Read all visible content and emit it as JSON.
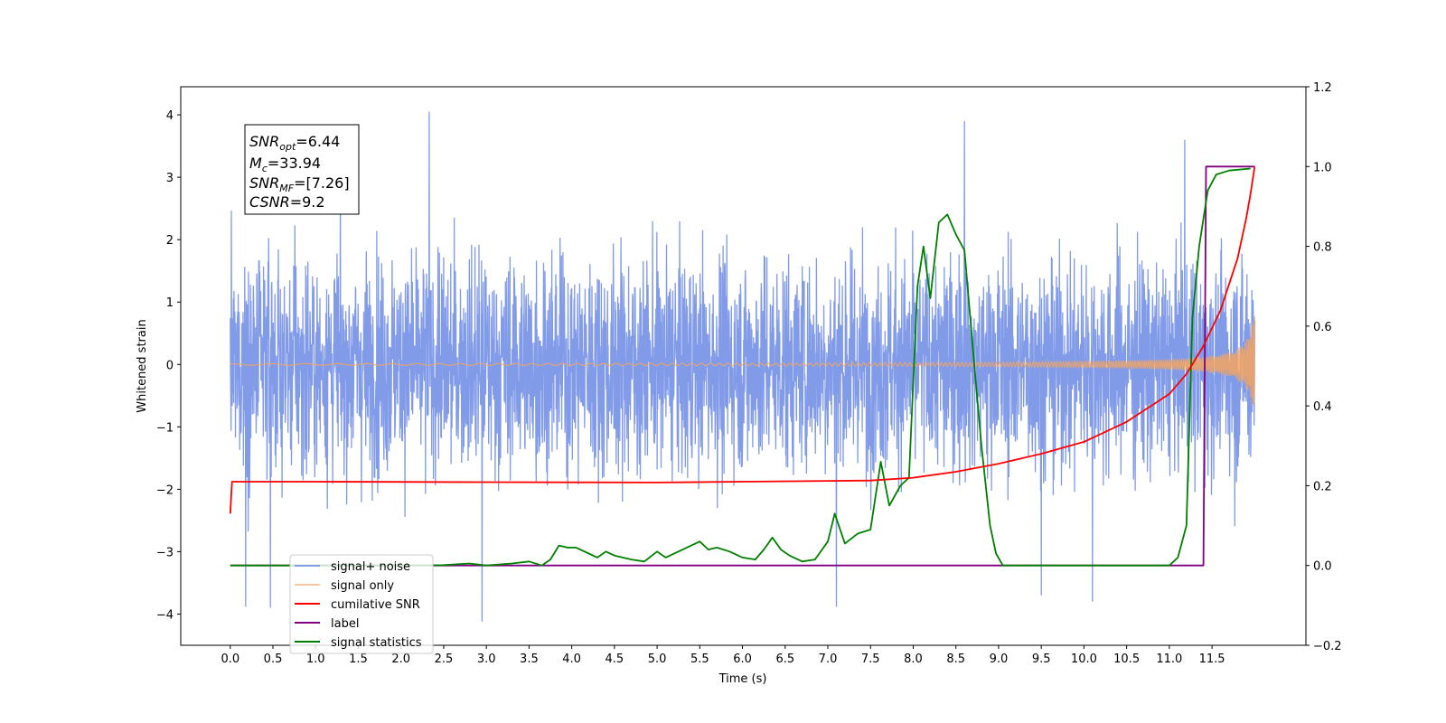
{
  "chart_data": {
    "type": "line",
    "xlabel": "Time (s)",
    "ylabel": "Whitened strain",
    "xlim": [
      -0.58,
      12.6
    ],
    "ylim": [
      -4.5,
      4.45
    ],
    "ylim_right": [
      -0.2,
      1.2
    ],
    "x_ticks": [
      "0.0",
      "0.5",
      "1.0",
      "1.5",
      "2.0",
      "2.5",
      "3.0",
      "3.5",
      "4.0",
      "4.5",
      "5.0",
      "5.5",
      "6.0",
      "6.5",
      "7.0",
      "7.5",
      "8.0",
      "8.5",
      "9.0",
      "9.5",
      "10.0",
      "10.5",
      "11.0",
      "11.5"
    ],
    "y_ticks_left": [
      "−4",
      "−3",
      "−2",
      "−1",
      "0",
      "1",
      "2",
      "3",
      "4"
    ],
    "y_ticks_right": [
      "−0.2",
      "0.0",
      "0.2",
      "0.4",
      "0.6",
      "0.8",
      "1.0",
      "1.2"
    ],
    "annotation": {
      "line1": {
        "base": "SNR",
        "sub": "opt",
        "value": "=6.44"
      },
      "line2": {
        "base": "M",
        "sub": "c",
        "value": "=33.94"
      },
      "line3": {
        "base": "SNR",
        "sub": "MF",
        "value": "=[7.26]"
      },
      "line4": {
        "base": "CSNR",
        "sub": "",
        "value": "=9.2"
      }
    },
    "legend_placement": "lower-left",
    "series": [
      {
        "name": "signal+ noise",
        "color": "#7b96e8",
        "axis": "left",
        "x_range": [
          0.0,
          12.0
        ],
        "typical_peak": [
          2.2,
          -2.2
        ],
        "envelope_extremes": [
          {
            "x": 0.18,
            "y": -3.88
          },
          {
            "x": 0.47,
            "y": -3.9
          },
          {
            "x": 2.33,
            "y": 4.05
          },
          {
            "x": 2.95,
            "y": -4.12
          },
          {
            "x": 7.1,
            "y": -3.88
          },
          {
            "x": 8.6,
            "y": 3.9
          },
          {
            "x": 9.5,
            "y": -3.7
          },
          {
            "x": 10.1,
            "y": -3.8
          },
          {
            "x": 11.18,
            "y": 3.6
          }
        ]
      },
      {
        "name": "signal only",
        "color": "#f4a460",
        "axis": "left",
        "model": "chirp",
        "x_range": [
          0.0,
          12.0
        ],
        "end_amplitude": 1.0,
        "start_frequency_hz": 2,
        "end_frequency_hz": 55
      },
      {
        "name": "cumilative SNR",
        "color": "#ff0000",
        "axis": "right",
        "points": [
          [
            0.0,
            0.13
          ],
          [
            0.02,
            0.21
          ],
          [
            1.0,
            0.21
          ],
          [
            3.0,
            0.209
          ],
          [
            5.0,
            0.208
          ],
          [
            6.0,
            0.21
          ],
          [
            7.0,
            0.212
          ],
          [
            7.5,
            0.213
          ],
          [
            8.0,
            0.22
          ],
          [
            8.5,
            0.235
          ],
          [
            9.0,
            0.255
          ],
          [
            9.5,
            0.28
          ],
          [
            10.0,
            0.31
          ],
          [
            10.5,
            0.36
          ],
          [
            11.0,
            0.43
          ],
          [
            11.2,
            0.48
          ],
          [
            11.4,
            0.55
          ],
          [
            11.6,
            0.64
          ],
          [
            11.8,
            0.77
          ],
          [
            11.9,
            0.87
          ],
          [
            11.95,
            0.93
          ],
          [
            12.0,
            1.0
          ]
        ]
      },
      {
        "name": "label",
        "color": "#800080",
        "axis": "right",
        "points": [
          [
            0.0,
            0.0
          ],
          [
            11.4,
            0.0
          ],
          [
            11.43,
            1.0
          ],
          [
            12.0,
            1.0
          ]
        ]
      },
      {
        "name": "signal statistics",
        "color": "#008000",
        "axis": "right",
        "points": [
          [
            0.0,
            0.0
          ],
          [
            1.0,
            0.0
          ],
          [
            2.0,
            0.0
          ],
          [
            2.5,
            0.001
          ],
          [
            2.8,
            0.005
          ],
          [
            3.0,
            0.0
          ],
          [
            3.3,
            0.005
          ],
          [
            3.5,
            0.01
          ],
          [
            3.65,
            0.0
          ],
          [
            3.75,
            0.015
          ],
          [
            3.85,
            0.05
          ],
          [
            3.95,
            0.045
          ],
          [
            4.05,
            0.045
          ],
          [
            4.2,
            0.03
          ],
          [
            4.3,
            0.02
          ],
          [
            4.4,
            0.035
          ],
          [
            4.5,
            0.025
          ],
          [
            4.7,
            0.015
          ],
          [
            4.85,
            0.01
          ],
          [
            5.0,
            0.035
          ],
          [
            5.1,
            0.02
          ],
          [
            5.25,
            0.035
          ],
          [
            5.4,
            0.05
          ],
          [
            5.5,
            0.06
          ],
          [
            5.6,
            0.04
          ],
          [
            5.7,
            0.045
          ],
          [
            5.85,
            0.035
          ],
          [
            6.0,
            0.02
          ],
          [
            6.15,
            0.015
          ],
          [
            6.25,
            0.04
          ],
          [
            6.35,
            0.07
          ],
          [
            6.45,
            0.04
          ],
          [
            6.55,
            0.025
          ],
          [
            6.7,
            0.01
          ],
          [
            6.85,
            0.015
          ],
          [
            7.0,
            0.06
          ],
          [
            7.08,
            0.13
          ],
          [
            7.2,
            0.055
          ],
          [
            7.35,
            0.08
          ],
          [
            7.5,
            0.09
          ],
          [
            7.62,
            0.26
          ],
          [
            7.72,
            0.15
          ],
          [
            7.85,
            0.2
          ],
          [
            7.95,
            0.22
          ],
          [
            8.05,
            0.7
          ],
          [
            8.12,
            0.8
          ],
          [
            8.2,
            0.67
          ],
          [
            8.3,
            0.86
          ],
          [
            8.4,
            0.88
          ],
          [
            8.5,
            0.83
          ],
          [
            8.6,
            0.79
          ],
          [
            8.7,
            0.54
          ],
          [
            8.8,
            0.3
          ],
          [
            8.9,
            0.1
          ],
          [
            8.97,
            0.03
          ],
          [
            9.05,
            0.0
          ],
          [
            10.0,
            0.0
          ],
          [
            11.0,
            0.0
          ],
          [
            11.1,
            0.02
          ],
          [
            11.2,
            0.1
          ],
          [
            11.27,
            0.62
          ],
          [
            11.35,
            0.8
          ],
          [
            11.45,
            0.94
          ],
          [
            11.55,
            0.98
          ],
          [
            11.7,
            0.99
          ],
          [
            11.95,
            0.995
          ]
        ]
      }
    ]
  }
}
